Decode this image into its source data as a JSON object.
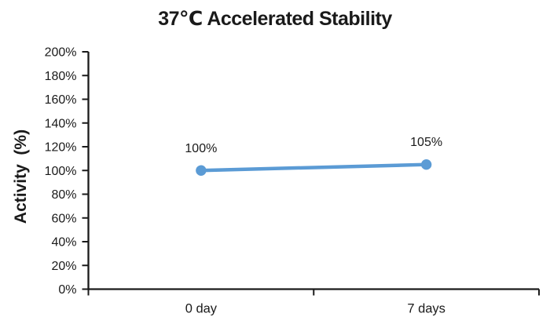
{
  "chart_data": {
    "type": "line",
    "title": "37℃ Accelerated Stability",
    "ylabel": "Activity  (%)",
    "xlabel": "",
    "categories": [
      "0 day",
      "7 days"
    ],
    "series": [
      {
        "name": "Activity",
        "values": [
          100,
          105
        ]
      }
    ],
    "data_labels": [
      "100%",
      "105%"
    ],
    "ylim": [
      0,
      200
    ],
    "ytick_labels": [
      "0%",
      "20%",
      "40%",
      "60%",
      "80%",
      "100%",
      "120%",
      "140%",
      "160%",
      "180%",
      "200%"
    ],
    "grid": "off",
    "legend": "none",
    "colors": {
      "line": "#5B9BD5",
      "marker": "#5B9BD5",
      "axis": "#1a1a1a",
      "text": "#1a1a1a",
      "background": "#ffffff"
    }
  }
}
